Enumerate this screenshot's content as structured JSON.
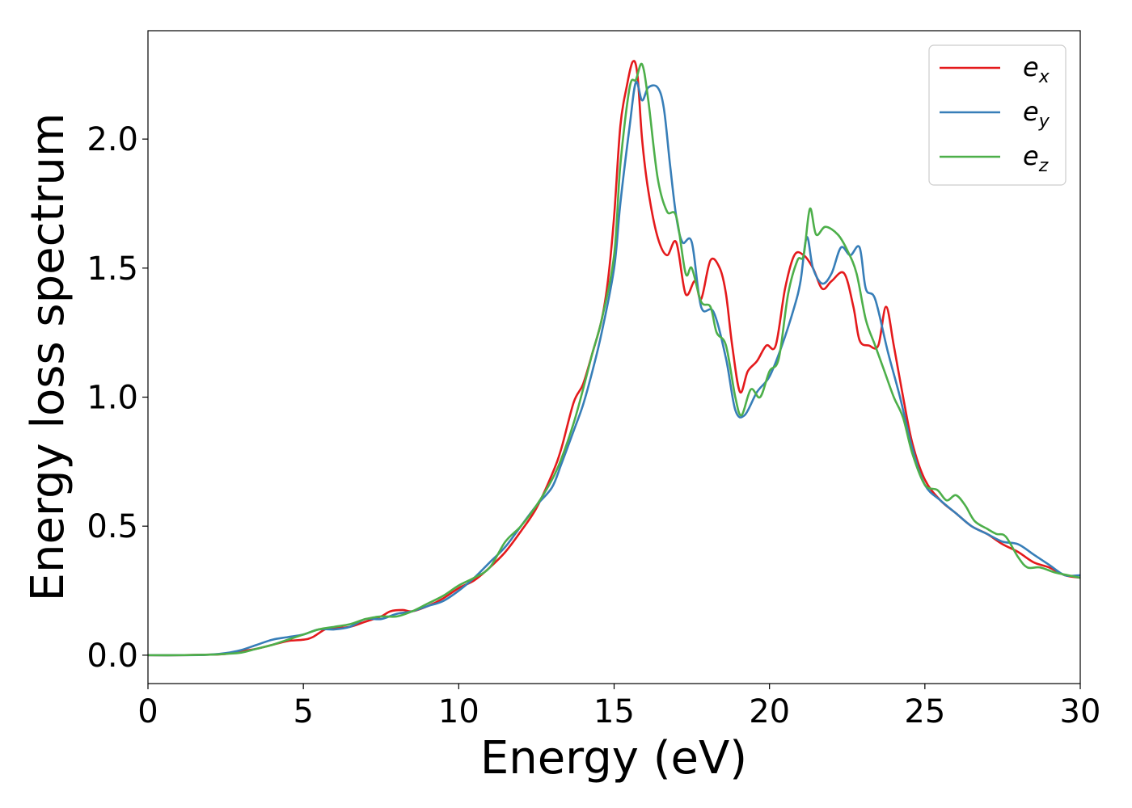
{
  "chart_data": {
    "type": "line",
    "xlabel": "Energy (eV)",
    "ylabel": "Energy loss spectrum",
    "xlim": [
      0,
      30
    ],
    "ylim": [
      -0.11,
      2.42
    ],
    "xticks": [
      0,
      5,
      10,
      15,
      20,
      25,
      30
    ],
    "yticks": [
      0.0,
      0.5,
      1.0,
      1.5,
      2.0
    ],
    "xtick_labels": [
      "0",
      "5",
      "10",
      "15",
      "20",
      "25",
      "30"
    ],
    "ytick_labels": [
      "0.0",
      "0.5",
      "1.0",
      "1.5",
      "2.0"
    ],
    "grid": false,
    "legend_position": "top-right",
    "series": [
      {
        "base": "e",
        "sub": "x",
        "color": "#e41a1c",
        "points": [
          [
            0,
            0
          ],
          [
            1,
            0
          ],
          [
            2,
            0.002
          ],
          [
            2.5,
            0.005
          ],
          [
            3,
            0.015
          ],
          [
            3.5,
            0.025
          ],
          [
            4,
            0.04
          ],
          [
            4.5,
            0.055
          ],
          [
            5,
            0.06
          ],
          [
            5.3,
            0.07
          ],
          [
            5.7,
            0.1
          ],
          [
            6,
            0.105
          ],
          [
            6.5,
            0.11
          ],
          [
            7,
            0.13
          ],
          [
            7.5,
            0.15
          ],
          [
            7.8,
            0.17
          ],
          [
            8.2,
            0.175
          ],
          [
            8.5,
            0.17
          ],
          [
            9,
            0.19
          ],
          [
            9.5,
            0.22
          ],
          [
            10,
            0.26
          ],
          [
            10.5,
            0.29
          ],
          [
            11,
            0.34
          ],
          [
            11.5,
            0.4
          ],
          [
            12,
            0.48
          ],
          [
            12.5,
            0.57
          ],
          [
            13,
            0.7
          ],
          [
            13.3,
            0.8
          ],
          [
            13.7,
            0.98
          ],
          [
            14,
            1.05
          ],
          [
            14.3,
            1.17
          ],
          [
            14.6,
            1.3
          ],
          [
            14.8,
            1.45
          ],
          [
            15,
            1.7
          ],
          [
            15.2,
            2.05
          ],
          [
            15.4,
            2.2
          ],
          [
            15.6,
            2.3
          ],
          [
            15.75,
            2.25
          ],
          [
            15.9,
            2.0
          ],
          [
            16.1,
            1.8
          ],
          [
            16.4,
            1.62
          ],
          [
            16.7,
            1.55
          ],
          [
            17,
            1.6
          ],
          [
            17.3,
            1.4
          ],
          [
            17.6,
            1.45
          ],
          [
            17.8,
            1.38
          ],
          [
            18.1,
            1.53
          ],
          [
            18.4,
            1.5
          ],
          [
            18.6,
            1.4
          ],
          [
            18.8,
            1.2
          ],
          [
            19.05,
            1.02
          ],
          [
            19.3,
            1.1
          ],
          [
            19.6,
            1.14
          ],
          [
            19.9,
            1.2
          ],
          [
            20.2,
            1.2
          ],
          [
            20.5,
            1.42
          ],
          [
            20.8,
            1.55
          ],
          [
            21.1,
            1.55
          ],
          [
            21.4,
            1.5
          ],
          [
            21.7,
            1.42
          ],
          [
            22,
            1.45
          ],
          [
            22.4,
            1.48
          ],
          [
            22.7,
            1.35
          ],
          [
            22.9,
            1.22
          ],
          [
            23.2,
            1.2
          ],
          [
            23.5,
            1.2
          ],
          [
            23.75,
            1.35
          ],
          [
            24,
            1.2
          ],
          [
            24.3,
            1.0
          ],
          [
            24.6,
            0.82
          ],
          [
            25,
            0.68
          ],
          [
            25.5,
            0.6
          ],
          [
            26,
            0.55
          ],
          [
            26.5,
            0.5
          ],
          [
            27,
            0.47
          ],
          [
            27.5,
            0.43
          ],
          [
            28,
            0.4
          ],
          [
            28.5,
            0.36
          ],
          [
            29,
            0.34
          ],
          [
            29.5,
            0.31
          ],
          [
            30,
            0.3
          ]
        ]
      },
      {
        "base": "e",
        "sub": "y",
        "color": "#377eb8",
        "points": [
          [
            0,
            0
          ],
          [
            1,
            0
          ],
          [
            2,
            0.002
          ],
          [
            2.5,
            0.008
          ],
          [
            3,
            0.02
          ],
          [
            3.5,
            0.04
          ],
          [
            4,
            0.06
          ],
          [
            4.5,
            0.07
          ],
          [
            5,
            0.08
          ],
          [
            5.5,
            0.1
          ],
          [
            6,
            0.1
          ],
          [
            6.5,
            0.11
          ],
          [
            7,
            0.14
          ],
          [
            7.5,
            0.14
          ],
          [
            8,
            0.16
          ],
          [
            8.5,
            0.17
          ],
          [
            9,
            0.19
          ],
          [
            9.5,
            0.21
          ],
          [
            10,
            0.25
          ],
          [
            10.5,
            0.3
          ],
          [
            11,
            0.36
          ],
          [
            11.5,
            0.42
          ],
          [
            12,
            0.5
          ],
          [
            12.5,
            0.58
          ],
          [
            13,
            0.65
          ],
          [
            13.3,
            0.74
          ],
          [
            13.7,
            0.87
          ],
          [
            14,
            0.97
          ],
          [
            14.3,
            1.1
          ],
          [
            14.6,
            1.25
          ],
          [
            15,
            1.5
          ],
          [
            15.2,
            1.75
          ],
          [
            15.5,
            2.05
          ],
          [
            15.7,
            2.22
          ],
          [
            15.9,
            2.15
          ],
          [
            16.1,
            2.2
          ],
          [
            16.4,
            2.2
          ],
          [
            16.6,
            2.12
          ],
          [
            16.8,
            1.9
          ],
          [
            17,
            1.7
          ],
          [
            17.2,
            1.6
          ],
          [
            17.5,
            1.6
          ],
          [
            17.8,
            1.35
          ],
          [
            18.2,
            1.33
          ],
          [
            18.6,
            1.15
          ],
          [
            18.9,
            0.95
          ],
          [
            19.2,
            0.93
          ],
          [
            19.6,
            1.02
          ],
          [
            20,
            1.08
          ],
          [
            20.4,
            1.2
          ],
          [
            20.8,
            1.35
          ],
          [
            21,
            1.45
          ],
          [
            21.2,
            1.62
          ],
          [
            21.4,
            1.5
          ],
          [
            21.7,
            1.44
          ],
          [
            22,
            1.48
          ],
          [
            22.3,
            1.58
          ],
          [
            22.6,
            1.55
          ],
          [
            22.9,
            1.58
          ],
          [
            23.1,
            1.42
          ],
          [
            23.4,
            1.38
          ],
          [
            23.8,
            1.18
          ],
          [
            24.2,
            1.0
          ],
          [
            24.6,
            0.8
          ],
          [
            25,
            0.66
          ],
          [
            25.5,
            0.6
          ],
          [
            26,
            0.55
          ],
          [
            26.5,
            0.5
          ],
          [
            27,
            0.47
          ],
          [
            27.5,
            0.44
          ],
          [
            28,
            0.43
          ],
          [
            28.5,
            0.39
          ],
          [
            29,
            0.35
          ],
          [
            29.5,
            0.31
          ],
          [
            30,
            0.31
          ]
        ]
      },
      {
        "base": "e",
        "sub": "z",
        "color": "#4daf4a",
        "points": [
          [
            0,
            0
          ],
          [
            1,
            0
          ],
          [
            2,
            0.002
          ],
          [
            2.5,
            0.005
          ],
          [
            3,
            0.01
          ],
          [
            3.5,
            0.025
          ],
          [
            4,
            0.04
          ],
          [
            4.5,
            0.06
          ],
          [
            5,
            0.08
          ],
          [
            5.5,
            0.1
          ],
          [
            6,
            0.11
          ],
          [
            6.5,
            0.12
          ],
          [
            7,
            0.14
          ],
          [
            7.5,
            0.15
          ],
          [
            8,
            0.15
          ],
          [
            8.5,
            0.17
          ],
          [
            9,
            0.2
          ],
          [
            9.5,
            0.23
          ],
          [
            10,
            0.27
          ],
          [
            10.5,
            0.3
          ],
          [
            11,
            0.34
          ],
          [
            11.5,
            0.44
          ],
          [
            12,
            0.5
          ],
          [
            12.5,
            0.58
          ],
          [
            13,
            0.68
          ],
          [
            13.3,
            0.76
          ],
          [
            13.7,
            0.9
          ],
          [
            14,
            1.03
          ],
          [
            14.3,
            1.17
          ],
          [
            14.6,
            1.3
          ],
          [
            15,
            1.55
          ],
          [
            15.2,
            1.9
          ],
          [
            15.5,
            2.2
          ],
          [
            15.7,
            2.23
          ],
          [
            15.9,
            2.29
          ],
          [
            16.1,
            2.15
          ],
          [
            16.4,
            1.85
          ],
          [
            16.7,
            1.72
          ],
          [
            17,
            1.7
          ],
          [
            17.3,
            1.48
          ],
          [
            17.5,
            1.5
          ],
          [
            17.8,
            1.37
          ],
          [
            18.1,
            1.35
          ],
          [
            18.3,
            1.25
          ],
          [
            18.6,
            1.2
          ],
          [
            18.9,
            1.0
          ],
          [
            19.1,
            0.93
          ],
          [
            19.4,
            1.03
          ],
          [
            19.7,
            1.0
          ],
          [
            20,
            1.1
          ],
          [
            20.3,
            1.15
          ],
          [
            20.6,
            1.4
          ],
          [
            20.9,
            1.53
          ],
          [
            21.1,
            1.55
          ],
          [
            21.3,
            1.73
          ],
          [
            21.5,
            1.63
          ],
          [
            21.8,
            1.66
          ],
          [
            22.2,
            1.63
          ],
          [
            22.5,
            1.57
          ],
          [
            22.8,
            1.48
          ],
          [
            23.1,
            1.3
          ],
          [
            23.4,
            1.2
          ],
          [
            23.7,
            1.1
          ],
          [
            24,
            1.0
          ],
          [
            24.3,
            0.92
          ],
          [
            24.6,
            0.78
          ],
          [
            25,
            0.66
          ],
          [
            25.4,
            0.64
          ],
          [
            25.7,
            0.6
          ],
          [
            26,
            0.62
          ],
          [
            26.3,
            0.58
          ],
          [
            26.6,
            0.52
          ],
          [
            27,
            0.49
          ],
          [
            27.3,
            0.47
          ],
          [
            27.6,
            0.46
          ],
          [
            28,
            0.38
          ],
          [
            28.3,
            0.34
          ],
          [
            28.7,
            0.34
          ],
          [
            29.2,
            0.32
          ],
          [
            29.6,
            0.31
          ],
          [
            30,
            0.3
          ]
        ]
      }
    ]
  }
}
